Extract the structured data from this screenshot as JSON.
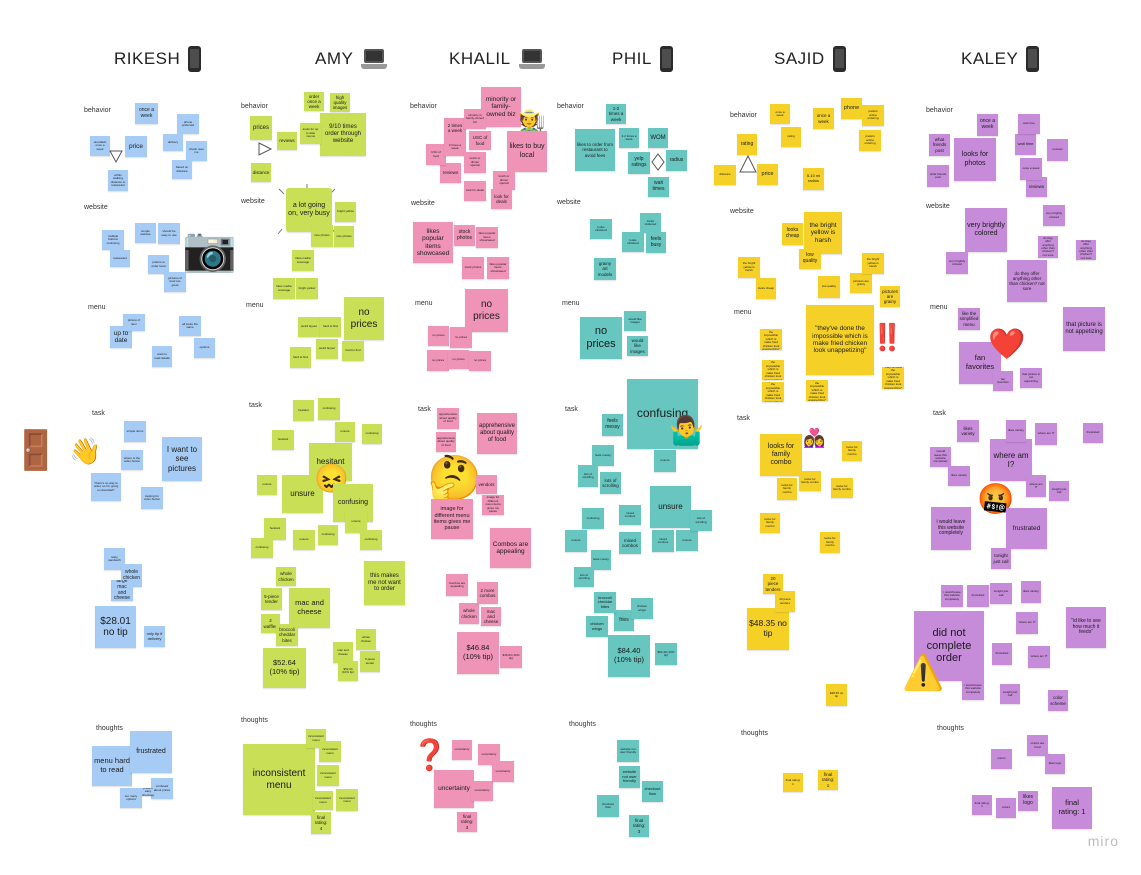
{
  "columns": [
    {
      "name": "RIKESH",
      "device": "phone"
    },
    {
      "name": "AMY",
      "device": "laptop"
    },
    {
      "name": "KHALIL",
      "device": "laptop"
    },
    {
      "name": "PHIL",
      "device": "phone"
    },
    {
      "name": "SAJID",
      "device": "phone"
    },
    {
      "name": "KALEY",
      "device": "phone"
    }
  ],
  "sections": [
    "behavior",
    "website",
    "menu",
    "task",
    "thoughts"
  ],
  "rikesh": {
    "behavior": [
      "once a week",
      "price",
      "phone preferred",
      "doordash once a week",
      "delivery",
      "check near me",
      "based on distance",
      "within walking distance to restaurant"
    ],
    "website": [
      "simple website",
      "multiple buttons confusing",
      "should be easy to use",
      "prefers to order local",
      "pictures of food are great",
      "restaurant",
      "flash"
    ],
    "menu": [
      "up to date",
      "picture of item",
      "all looks the same",
      "want to read details",
      "options"
    ],
    "task": [
      "I want to see pictures",
      "\"there's no way to order, so I'm going on doordash\"",
      "simple items",
      "where is the order button",
      "looking for order button",
      "tasty sandwich",
      "whole chicken",
      "large mac and cheese",
      "$28.01 no tip",
      "only tip if delivery"
    ],
    "thoughts": [
      "menu hard to read",
      "frustrated",
      "too many options",
      "confused about prices",
      "prefers easy checkout"
    ]
  },
  "amy": {
    "behavior": [
      "order once a week",
      "high quality images",
      "9/10 times order through website",
      "prices",
      "reviews",
      "looks for up to date menus",
      "distance"
    ],
    "website": [
      "a lot going on, very busy",
      "likes media coverage",
      "bright yellow",
      "nice photos"
    ],
    "menu": [
      "no prices",
      "weird layout",
      "hard to find"
    ],
    "task": [
      "hesitant",
      "unsure",
      "confusing",
      "mac and cheese",
      "this makes me not want to order",
      "whole chicken",
      "5-piece tender",
      "2 waffles",
      "broccoli cheddar bites",
      "$52.64 (10% tip)"
    ],
    "thoughts": [
      "inconsistent menu",
      "final rating: 4"
    ]
  },
  "khalil": {
    "behavior": [
      "minority or family-owned biz",
      "likes to buy local",
      "2 times a week",
      "USC of food",
      "reviews",
      "lunch or dinner special",
      "look for deals"
    ],
    "website": [
      "likes popular items showcased",
      "stock photos"
    ],
    "menu": [
      "no prices"
    ],
    "task": [
      "apprehensive about quality of food",
      "image for different menu items gives me pause",
      "Combos are appealing",
      "whole chicken",
      "mac and cheese",
      "2 more combos",
      "$46.84 (10% tip)",
      "vendors"
    ],
    "thoughts": [
      "uncertainty",
      "final rating: 3"
    ]
  },
  "phil": {
    "behavior": [
      "1-2 times a week",
      "WOM",
      "radius",
      "yelp ratings",
      "wait times",
      "likes to order from restaurant to avoid fees"
    ],
    "website": [
      "feels busy",
      "looks cluttered",
      "grainy art models"
    ],
    "menu": [
      "no prices",
      "would like images"
    ],
    "task": [
      "confusing",
      "feels messy",
      "unsure",
      "lots of scrolling",
      "mixed combos",
      "fries",
      "broccoli cheddar bites",
      "chicken wings",
      "$84.40 (10% tip)"
    ],
    "thoughts": [
      "website not user friendly",
      "checkout flow",
      "final rating: 3"
    ]
  },
  "sajid": {
    "behavior": [
      "phone",
      "once a week",
      "rating",
      "price",
      "distance",
      "5-10 mi radius",
      "prefers online ordering"
    ],
    "website": [
      "the bright yellow is harsh",
      "looks cheap",
      "low quality",
      "pictures are grainy"
    ],
    "menu": [
      "\"they've done the impossible which is make fried chicken look unappetizing\""
    ],
    "task": [
      "looks for family combo",
      "20 piece tenders",
      "$48.35 no tip"
    ],
    "thoughts": [
      "final rating: 1"
    ]
  },
  "kaley": {
    "behavior": [
      "once a week",
      "looks for photos",
      "reviews",
      "wait time",
      "what friends post"
    ],
    "website": [
      "very brightly colored",
      "do they offer anything other than chicken? not sure"
    ],
    "menu": [
      "fan favorites",
      "that picture is not appetizing",
      "like the simplified menu"
    ],
    "task": [
      "likes variety",
      "where am I?",
      "frustrated",
      "i would leave this website completely",
      "tonight just call",
      "did not complete order",
      "\"id like to see how much it feeds\""
    ],
    "thoughts": [
      "likes logo",
      "final rating: 1",
      "color scheme",
      "colors",
      "orders are hard"
    ]
  },
  "watermark": "miro",
  "colors": {
    "rikesh": "#a6ccf5",
    "amy": "#c9df56",
    "khalil": "#ef94b7",
    "phil": "#67c6c0",
    "sajid": "#f5d128",
    "kaley": "#c68bd9"
  }
}
